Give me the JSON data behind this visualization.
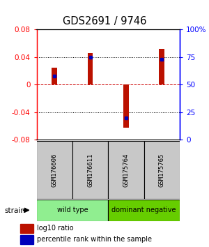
{
  "title": "GDS2691 / 9746",
  "samples": [
    "GSM176606",
    "GSM176611",
    "GSM175764",
    "GSM175765"
  ],
  "log10_ratio": [
    0.025,
    0.046,
    -0.063,
    0.052
  ],
  "percentile_rank": [
    57.5,
    75.0,
    20.0,
    73.0
  ],
  "groups": [
    {
      "label": "wild type",
      "samples": [
        0,
        1
      ],
      "color": "#90EE90"
    },
    {
      "label": "dominant negative",
      "samples": [
        2,
        3
      ],
      "color": "#66CD00"
    }
  ],
  "ylim": [
    -0.08,
    0.08
  ],
  "yticks_left": [
    -0.08,
    -0.04,
    0,
    0.04,
    0.08
  ],
  "yticks_right": [
    0,
    25,
    50,
    75,
    100
  ],
  "bar_color": "#BB1100",
  "dot_color": "#0000BB",
  "zero_line_color": "#CC0000",
  "background_color": "#FFFFFF",
  "label_log10": "log10 ratio",
  "label_pct": "percentile rank within the sample",
  "strain_label": "strain",
  "sample_box_color": "#C8C8C8",
  "bar_width": 0.15
}
